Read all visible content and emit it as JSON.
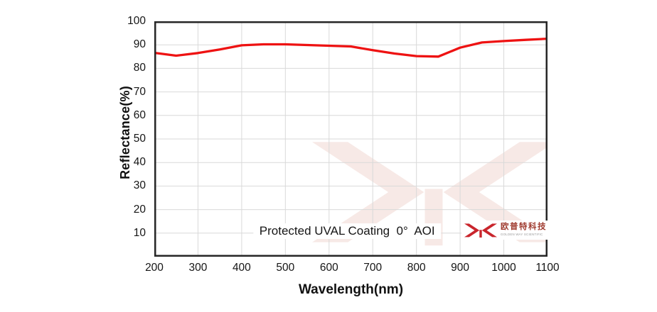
{
  "chart_data": {
    "type": "line",
    "title": "Protected UVAL Coating  0°  AOI",
    "xlabel": "Wavelength(nm)",
    "ylabel": "Reflectance(%)",
    "xlim": [
      200,
      1100
    ],
    "ylim": [
      0,
      100
    ],
    "x_ticks": [
      200,
      300,
      400,
      500,
      600,
      700,
      800,
      900,
      1000,
      1100
    ],
    "y_ticks": [
      10,
      20,
      30,
      40,
      50,
      60,
      70,
      80,
      90,
      100
    ],
    "grid": true,
    "legend_position": "none",
    "series": [
      {
        "name": "Reflectance",
        "color": "#ee1212",
        "x": [
          200,
          250,
          300,
          350,
          400,
          450,
          500,
          550,
          600,
          650,
          700,
          750,
          800,
          850,
          900,
          950,
          1000,
          1050,
          1100
        ],
        "y": [
          86.6,
          85.4,
          86.5,
          88.0,
          89.8,
          90.2,
          90.2,
          89.9,
          89.6,
          89.3,
          87.7,
          86.3,
          85.2,
          85.0,
          88.8,
          91.0,
          91.6,
          92.1,
          92.6
        ]
      }
    ]
  },
  "annotation": {
    "label": "Protected UVAL Coating  0°  AOI"
  },
  "logo": {
    "name_cn": "欧普特科技",
    "name_en": "GOLDEN WAY SCIENTIFIC"
  },
  "colors": {
    "line": "#ee1212",
    "grid": "#d9d9d9",
    "axis": "#262626",
    "watermark": "#f7e9e6",
    "logo_red": "#c9252c",
    "logo_cn": "#a03c30",
    "logo_en": "#9a9a9a"
  }
}
